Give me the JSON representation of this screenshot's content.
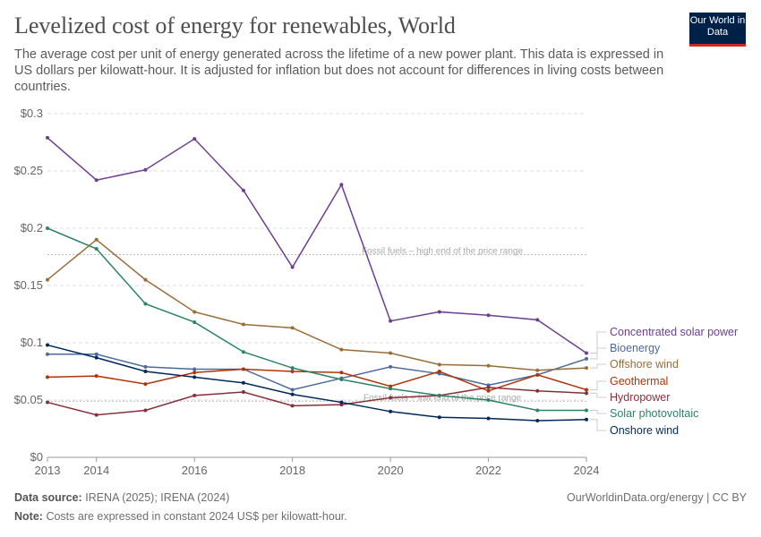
{
  "header": {
    "title": "Levelized cost of energy for renewables, World",
    "subtitle": "The average cost per unit of energy generated across the lifetime of a new power plant. This data is expressed in US dollars per kilowatt-hour. It is adjusted for inflation but does not account for differences in living costs between countries.",
    "logo": "Our World in Data"
  },
  "footer": {
    "source_label": "Data source:",
    "source": "IRENA (2025); IRENA (2024)",
    "license": "OurWorldinData.org/energy | CC BY",
    "note_label": "Note:",
    "note": "Costs are expressed in constant 2024 US$ per kilowatt-hour."
  },
  "chart_data": {
    "type": "line",
    "x": [
      2013,
      2014,
      2015,
      2016,
      2017,
      2018,
      2019,
      2020,
      2021,
      2022,
      2023,
      2024
    ],
    "xticks": [
      "2013",
      "2014",
      "2016",
      "2018",
      "2020",
      "2022",
      "2024"
    ],
    "yticks": [
      "$0",
      "$0.05",
      "$0.1",
      "$0.15",
      "$0.2",
      "$0.25",
      "$0.3"
    ],
    "ylim": [
      0,
      0.3
    ],
    "grid": true,
    "legend": "right, inline labels",
    "series": [
      {
        "name": "Concentrated solar power",
        "color": "#6d3e91",
        "values": [
          0.279,
          0.242,
          0.251,
          0.278,
          0.233,
          0.166,
          0.238,
          0.119,
          0.127,
          0.124,
          0.12,
          0.091
        ]
      },
      {
        "name": "Bioenergy",
        "color": "#4c6a9c",
        "values": [
          0.09,
          0.09,
          0.079,
          0.077,
          0.077,
          0.059,
          0.069,
          0.079,
          0.073,
          0.063,
          0.072,
          0.086
        ]
      },
      {
        "name": "Offshore wind",
        "color": "#996d39",
        "values": [
          0.155,
          0.19,
          0.155,
          0.127,
          0.116,
          0.113,
          0.094,
          0.091,
          0.081,
          0.08,
          0.076,
          0.078
        ]
      },
      {
        "name": "Geothermal",
        "color": "#b13507",
        "values": [
          0.07,
          0.071,
          0.064,
          0.074,
          0.077,
          0.075,
          0.074,
          0.062,
          0.075,
          0.058,
          0.072,
          0.059
        ]
      },
      {
        "name": "Hydropower",
        "color": "#883039",
        "values": [
          0.048,
          0.037,
          0.041,
          0.054,
          0.057,
          0.045,
          0.046,
          0.052,
          0.054,
          0.061,
          0.058,
          0.056
        ]
      },
      {
        "name": "Solar photovoltaic",
        "color": "#2c8465",
        "values": [
          0.2,
          0.182,
          0.134,
          0.118,
          0.092,
          0.078,
          0.068,
          0.06,
          0.054,
          0.05,
          0.041,
          0.041
        ]
      },
      {
        "name": "Onshore wind",
        "color": "#00295b",
        "values": [
          0.098,
          0.087,
          0.075,
          0.07,
          0.065,
          0.055,
          0.048,
          0.04,
          0.035,
          0.034,
          0.032,
          0.033
        ]
      }
    ],
    "annotations": [
      {
        "text": "Fossil fuels – high end of the price range",
        "y": 0.177
      },
      {
        "text": "Fossil fuels – low end of the price range",
        "y": 0.049
      }
    ]
  }
}
